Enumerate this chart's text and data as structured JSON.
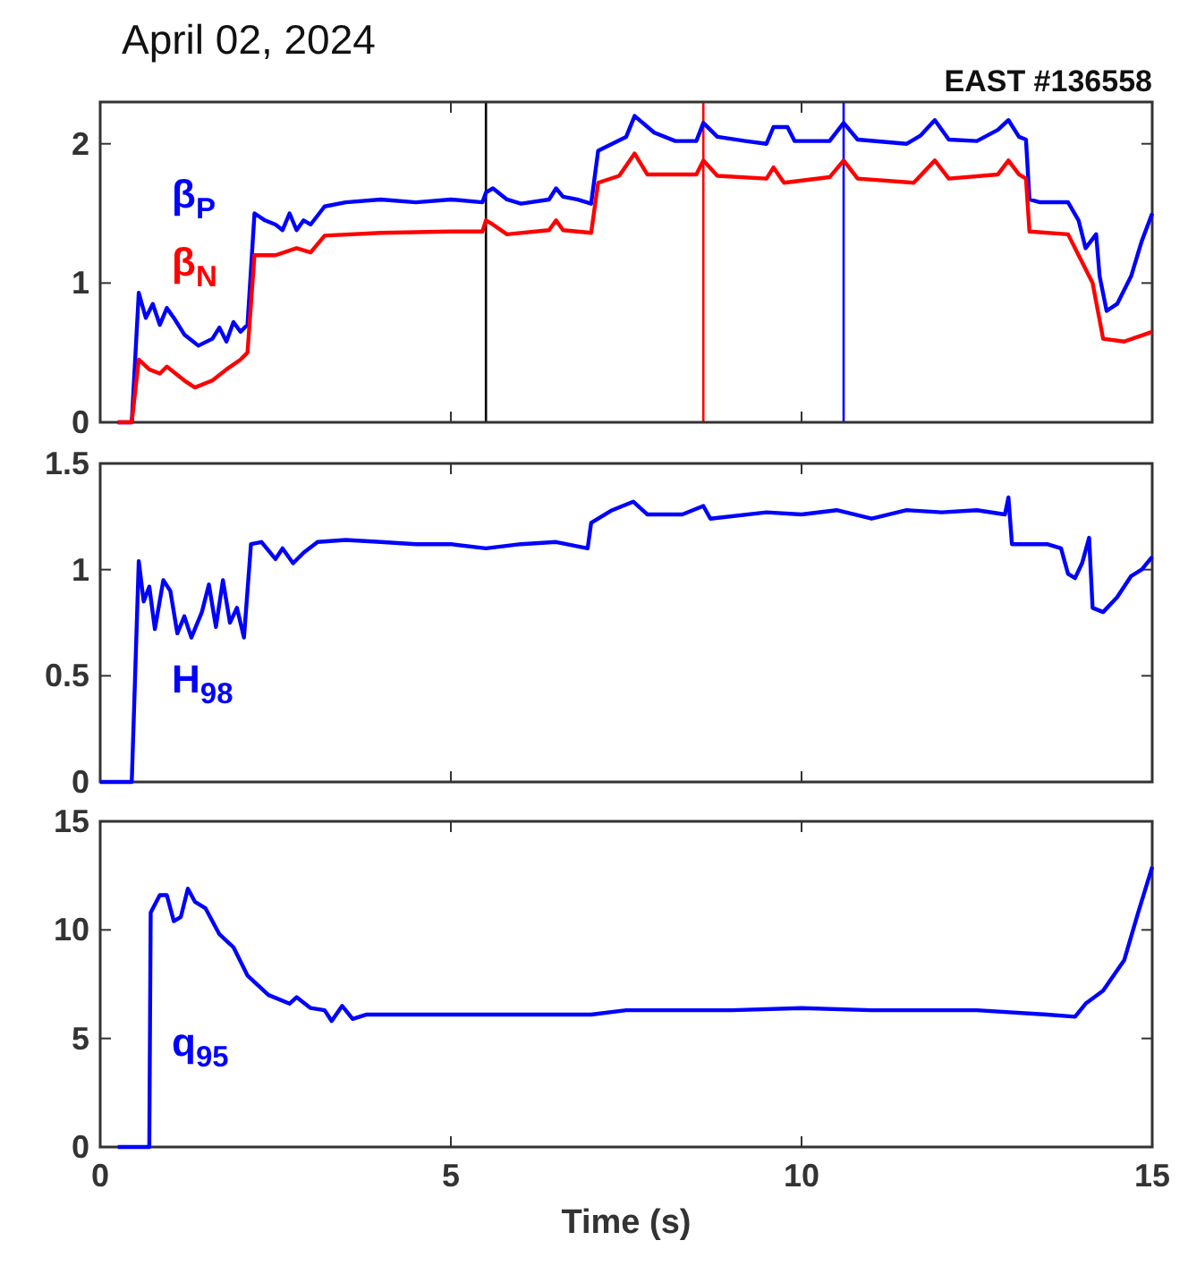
{
  "chart_data": [
    {
      "type": "line",
      "title": "April 02, 2024",
      "subtitle": "EAST #136558",
      "xlim": [
        0,
        15
      ],
      "xticks": [
        0,
        5,
        10,
        15
      ],
      "ylim": [
        0,
        2.3
      ],
      "yticks": [
        0,
        1,
        2
      ],
      "tick_labels": "y",
      "grid": false,
      "ref_lines": [
        {
          "axis": "x",
          "value": 5.5,
          "color": "#000000"
        },
        {
          "axis": "x",
          "value": 8.6,
          "color": "#ff0000"
        },
        {
          "axis": "x",
          "value": 10.6,
          "color": "#0000ff"
        }
      ],
      "series": [
        {
          "name": "β$_{P}$",
          "color": "#0000ff",
          "x": [
            0.25,
            0.45,
            0.55,
            0.65,
            0.75,
            0.85,
            0.95,
            1.05,
            1.2,
            1.4,
            1.6,
            1.7,
            1.8,
            1.9,
            2.0,
            2.1,
            2.15,
            2.2,
            2.35,
            2.5,
            2.6,
            2.7,
            2.8,
            2.9,
            3.0,
            3.2,
            3.5,
            4.0,
            4.5,
            5.0,
            5.45,
            5.5,
            5.6,
            5.8,
            6.0,
            6.4,
            6.5,
            6.6,
            6.8,
            7.0,
            7.1,
            7.3,
            7.5,
            7.62,
            7.9,
            8.2,
            8.5,
            8.6,
            8.8,
            9.2,
            9.5,
            9.6,
            9.8,
            9.9,
            10.4,
            10.6,
            10.8,
            11.5,
            11.7,
            11.9,
            12.1,
            12.5,
            12.8,
            12.95,
            13.1,
            13.2,
            13.25,
            13.4,
            13.8,
            13.95,
            14.05,
            14.2,
            14.25,
            14.35,
            14.5,
            14.7,
            14.85,
            15.0
          ],
          "values": [
            0,
            0,
            0.93,
            0.75,
            0.85,
            0.7,
            0.82,
            0.75,
            0.63,
            0.55,
            0.6,
            0.68,
            0.58,
            0.72,
            0.65,
            0.7,
            1.1,
            1.5,
            1.45,
            1.42,
            1.38,
            1.5,
            1.38,
            1.45,
            1.42,
            1.55,
            1.58,
            1.6,
            1.58,
            1.6,
            1.58,
            1.65,
            1.68,
            1.6,
            1.57,
            1.6,
            1.68,
            1.62,
            1.6,
            1.57,
            1.95,
            2.0,
            2.05,
            2.2,
            2.08,
            2.02,
            2.02,
            2.15,
            2.05,
            2.02,
            2.0,
            2.12,
            2.12,
            2.02,
            2.02,
            2.15,
            2.03,
            2.0,
            2.06,
            2.17,
            2.03,
            2.02,
            2.1,
            2.17,
            2.05,
            2.03,
            1.6,
            1.58,
            1.58,
            1.45,
            1.25,
            1.35,
            1.05,
            0.8,
            0.85,
            1.05,
            1.3,
            1.5
          ]
        },
        {
          "name": "β$_{N}$",
          "color": "#ff0000",
          "x": [
            0.25,
            0.45,
            0.55,
            0.7,
            0.85,
            0.95,
            1.2,
            1.35,
            1.6,
            1.8,
            2.0,
            2.1,
            2.2,
            2.5,
            2.8,
            3.0,
            3.2,
            4.0,
            5.0,
            5.45,
            5.5,
            5.6,
            5.8,
            6.4,
            6.5,
            6.6,
            7.0,
            7.1,
            7.4,
            7.62,
            7.8,
            8.5,
            8.6,
            8.8,
            9.5,
            9.6,
            9.75,
            10.4,
            10.6,
            10.8,
            11.6,
            11.9,
            12.1,
            12.8,
            12.95,
            13.1,
            13.2,
            13.25,
            13.8,
            13.95,
            14.05,
            14.15,
            14.3,
            14.6,
            15.0
          ],
          "values": [
            0,
            0,
            0.45,
            0.38,
            0.35,
            0.4,
            0.3,
            0.25,
            0.3,
            0.38,
            0.45,
            0.5,
            1.2,
            1.2,
            1.25,
            1.22,
            1.34,
            1.36,
            1.37,
            1.37,
            1.45,
            1.42,
            1.35,
            1.38,
            1.45,
            1.38,
            1.36,
            1.72,
            1.77,
            1.93,
            1.78,
            1.78,
            1.88,
            1.77,
            1.75,
            1.83,
            1.72,
            1.76,
            1.88,
            1.75,
            1.72,
            1.88,
            1.75,
            1.78,
            1.88,
            1.78,
            1.75,
            1.37,
            1.35,
            1.2,
            1.1,
            1.0,
            0.6,
            0.58,
            0.65
          ]
        }
      ]
    },
    {
      "type": "line",
      "xlim": [
        0,
        15
      ],
      "xticks": [
        0,
        5,
        10,
        15
      ],
      "ylim": [
        0,
        1.5
      ],
      "yticks": [
        0,
        0.5,
        1,
        1.5
      ],
      "tick_labels": "y",
      "grid": false,
      "series": [
        {
          "name": "H$_{98}$",
          "color": "#0000ff",
          "x": [
            0.0,
            0.45,
            0.55,
            0.62,
            0.7,
            0.78,
            0.9,
            1.0,
            1.1,
            1.2,
            1.3,
            1.45,
            1.55,
            1.65,
            1.75,
            1.85,
            1.95,
            2.05,
            2.15,
            2.3,
            2.5,
            2.6,
            2.75,
            2.9,
            3.1,
            3.5,
            4.0,
            4.5,
            5.0,
            5.5,
            6.0,
            6.5,
            6.95,
            7.0,
            7.3,
            7.6,
            7.8,
            8.3,
            8.6,
            8.7,
            9.5,
            10.0,
            10.5,
            11.0,
            11.5,
            12.0,
            12.5,
            12.9,
            12.95,
            13.0,
            13.5,
            13.7,
            13.8,
            13.9,
            14.0,
            14.1,
            14.15,
            14.3,
            14.5,
            14.7,
            14.85,
            15.0
          ],
          "values": [
            0,
            0,
            1.04,
            0.85,
            0.92,
            0.72,
            0.95,
            0.9,
            0.7,
            0.78,
            0.68,
            0.8,
            0.93,
            0.73,
            0.95,
            0.75,
            0.82,
            0.68,
            1.12,
            1.13,
            1.05,
            1.1,
            1.03,
            1.08,
            1.13,
            1.14,
            1.13,
            1.12,
            1.12,
            1.1,
            1.12,
            1.13,
            1.1,
            1.22,
            1.28,
            1.32,
            1.26,
            1.26,
            1.3,
            1.24,
            1.27,
            1.26,
            1.28,
            1.24,
            1.28,
            1.27,
            1.28,
            1.26,
            1.34,
            1.12,
            1.12,
            1.1,
            0.98,
            0.96,
            1.03,
            1.15,
            0.82,
            0.8,
            0.87,
            0.97,
            1.0,
            1.06
          ]
        }
      ]
    },
    {
      "type": "line",
      "xlabel": "Time (s)",
      "xlim": [
        0,
        15
      ],
      "xticks": [
        0,
        5,
        10,
        15
      ],
      "ylim": [
        0,
        15
      ],
      "yticks": [
        0,
        5,
        10,
        15
      ],
      "grid": false,
      "series": [
        {
          "name": "q$_{95}$",
          "color": "#0000ff",
          "x": [
            0.25,
            0.7,
            0.72,
            0.85,
            0.95,
            1.05,
            1.15,
            1.25,
            1.35,
            1.5,
            1.7,
            1.9,
            2.1,
            2.4,
            2.7,
            2.8,
            3.0,
            3.2,
            3.3,
            3.45,
            3.6,
            3.8,
            4.5,
            6.0,
            7.0,
            7.5,
            9.0,
            10.0,
            11.0,
            12.5,
            13.5,
            13.9,
            14.05,
            14.3,
            14.6,
            14.8,
            15.0
          ],
          "values": [
            0,
            0,
            10.8,
            11.6,
            11.6,
            10.4,
            10.6,
            11.9,
            11.3,
            11.0,
            9.8,
            9.2,
            7.9,
            7.0,
            6.6,
            6.9,
            6.4,
            6.3,
            5.8,
            6.5,
            5.9,
            6.1,
            6.1,
            6.1,
            6.1,
            6.3,
            6.3,
            6.4,
            6.3,
            6.3,
            6.1,
            6.0,
            6.6,
            7.2,
            8.6,
            10.8,
            12.9
          ]
        }
      ]
    }
  ]
}
